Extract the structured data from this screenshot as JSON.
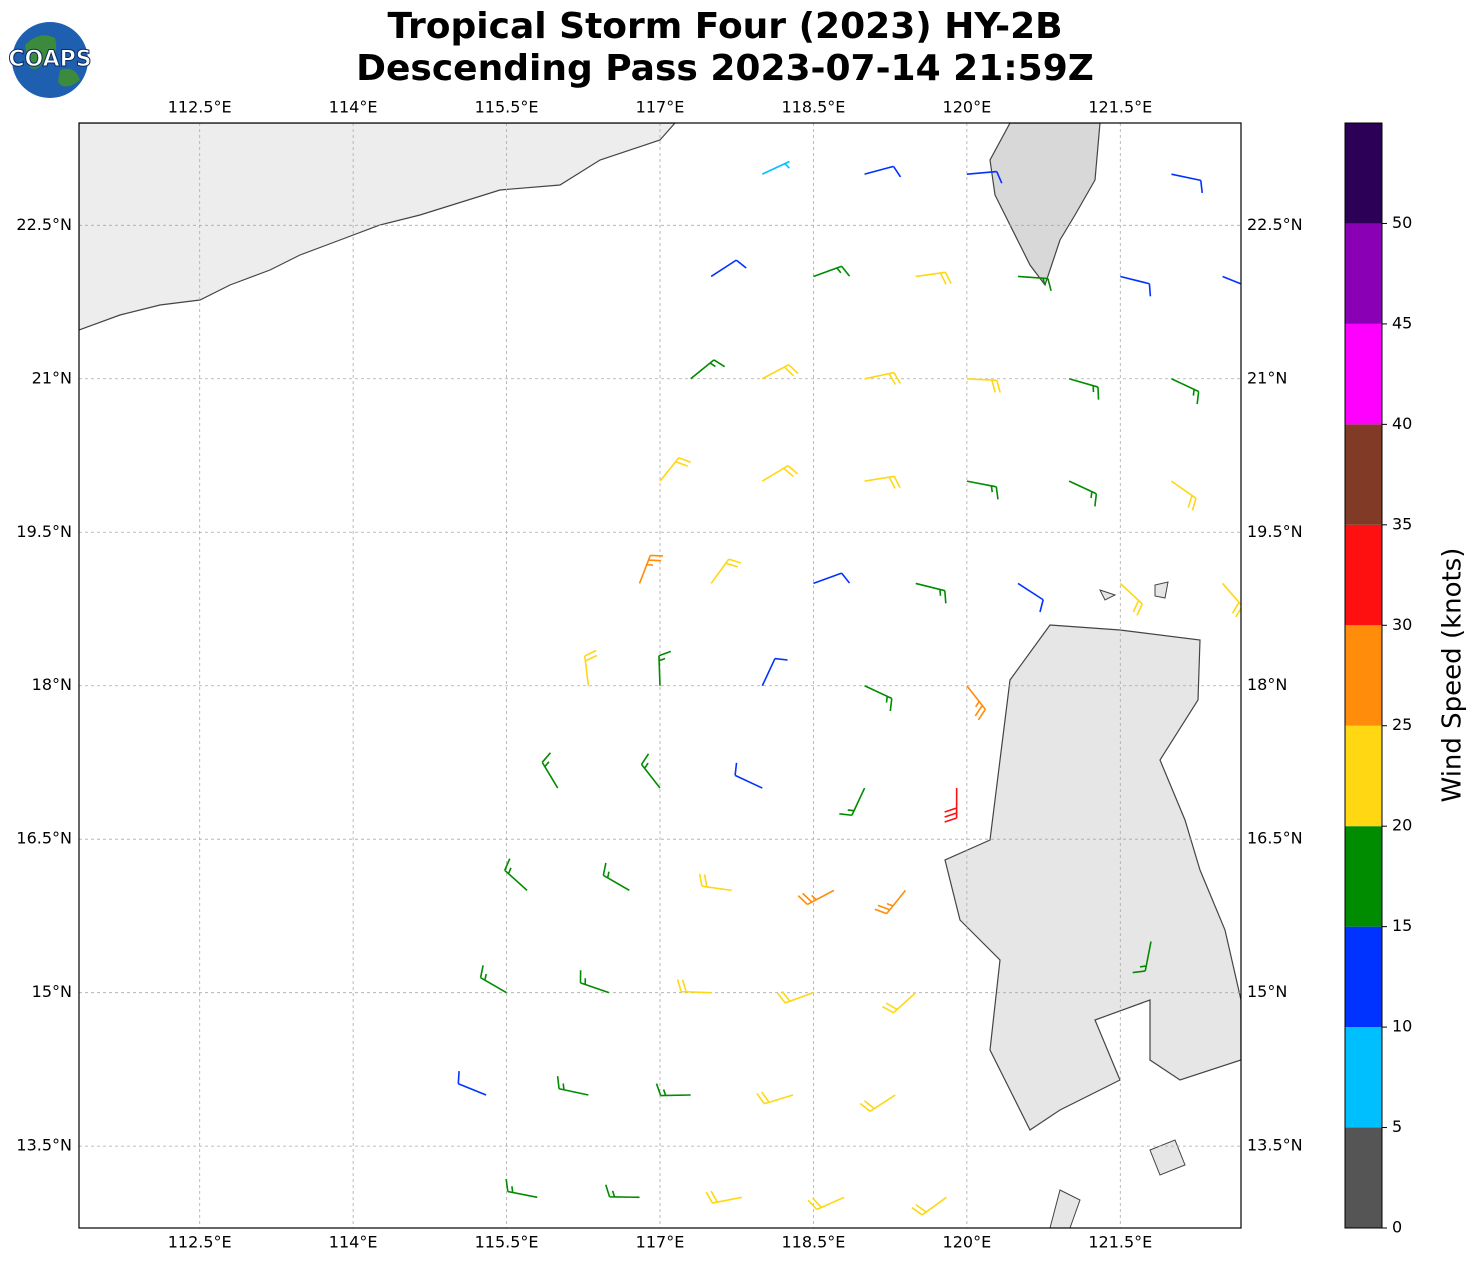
{
  "map": {
    "title": "Tropical Storm Four (2023) HY-2B",
    "subtitle": "Descending Pass 2023-07-14 21:59Z",
    "logo": "COAPS",
    "lonlim": [
      111.32,
      122.68
    ],
    "latlim": [
      12.7,
      23.5
    ],
    "lonticks": [
      {
        "value": 112.5,
        "label": "112.5°E"
      },
      {
        "value": 114,
        "label": "114°E"
      },
      {
        "value": 115.5,
        "label": "115.5°E"
      },
      {
        "value": 117,
        "label": "117°E"
      },
      {
        "value": 118.5,
        "label": "118.5°E"
      },
      {
        "value": 120,
        "label": "120°E"
      },
      {
        "value": 121.5,
        "label": "121.5°E"
      }
    ],
    "latticks": [
      {
        "value": 22.5,
        "label": "22.5°N"
      },
      {
        "value": 21,
        "label": "21°N"
      },
      {
        "value": 19.5,
        "label": "19.5°N"
      },
      {
        "value": 18,
        "label": "18°N"
      },
      {
        "value": 16.5,
        "label": "16.5°N"
      },
      {
        "value": 15,
        "label": "15°N"
      },
      {
        "value": 13.5,
        "label": "13.5°N"
      }
    ],
    "grid": true,
    "colorbar": {
      "label": "Wind Speed (knots)",
      "bounds": [
        0,
        5,
        10,
        15,
        20,
        25,
        30,
        35,
        40,
        45,
        50,
        55
      ],
      "colors": [
        "#555555",
        "#00bfff",
        "#0033ff",
        "#008c00",
        "#ffd712",
        "#ff8c0a",
        "#ff1010",
        "#803a25",
        "#ff00ff",
        "#8a00b5",
        "#2d0058"
      ],
      "ticks": [
        0,
        5,
        10,
        15,
        20,
        25,
        30,
        35,
        40,
        45,
        50
      ]
    },
    "barbs": {
      "lon": [
        118,
        119,
        120,
        122,
        117.5,
        118.5,
        119.5,
        120.5,
        121.5,
        122.5,
        117.3,
        118,
        119,
        120,
        121,
        122,
        117,
        118,
        119,
        120,
        121,
        122,
        116.8,
        117.5,
        118.5,
        119.5,
        120.5,
        121.5,
        122.5,
        116.3,
        117,
        118,
        119,
        120,
        116,
        117,
        118,
        119,
        119.9,
        115.7,
        116.7,
        117.7,
        118.7,
        119.4,
        115.5,
        116.5,
        117.5,
        118.5,
        119.5,
        115.3,
        116.3,
        117.3,
        118.3,
        119.3,
        115.8,
        116.8,
        117.8,
        118.8,
        119.8,
        121.8
      ],
      "lat": [
        23,
        23,
        23,
        23,
        22,
        22,
        22,
        22,
        22,
        22,
        21,
        21,
        21,
        21,
        21,
        21,
        20,
        20,
        20,
        20,
        20,
        20,
        19,
        19,
        19,
        19,
        19,
        19,
        19,
        18,
        18,
        18,
        18,
        18,
        17,
        17,
        17,
        17,
        17,
        16,
        16,
        16,
        16,
        16,
        15,
        15,
        15,
        15,
        15,
        14,
        14,
        14,
        14,
        14,
        13,
        13,
        13,
        13,
        13,
        15.5
      ],
      "speed": [
        7,
        12,
        12,
        12,
        12,
        18,
        22,
        17,
        12,
        12,
        17,
        22,
        22,
        21,
        18,
        17,
        22,
        22,
        21,
        18,
        19,
        22,
        27,
        22,
        13,
        17,
        14,
        20,
        22,
        22,
        19,
        13,
        18,
        27,
        18,
        18,
        14,
        17,
        31,
        17,
        18,
        22,
        26,
        27,
        17,
        18,
        22,
        24,
        22,
        12,
        17,
        18,
        22,
        22,
        17,
        17,
        22,
        22,
        20,
        18
      ],
      "direction": [
        65,
        75,
        85,
        102,
        57,
        70,
        82,
        94,
        104,
        112,
        51,
        62,
        78,
        93,
        106,
        115,
        39,
        59,
        81,
        101,
        115,
        125,
        21,
        36,
        70,
        104,
        123,
        133,
        139,
        353,
        358,
        25,
        115,
        142,
        329,
        322,
        295,
        205,
        180,
        312,
        300,
        278,
        242,
        219,
        300,
        289,
        272,
        250,
        228,
        292,
        282,
        269,
        253,
        237,
        281,
        271,
        259,
        246,
        234,
        191
      ]
    }
  }
}
